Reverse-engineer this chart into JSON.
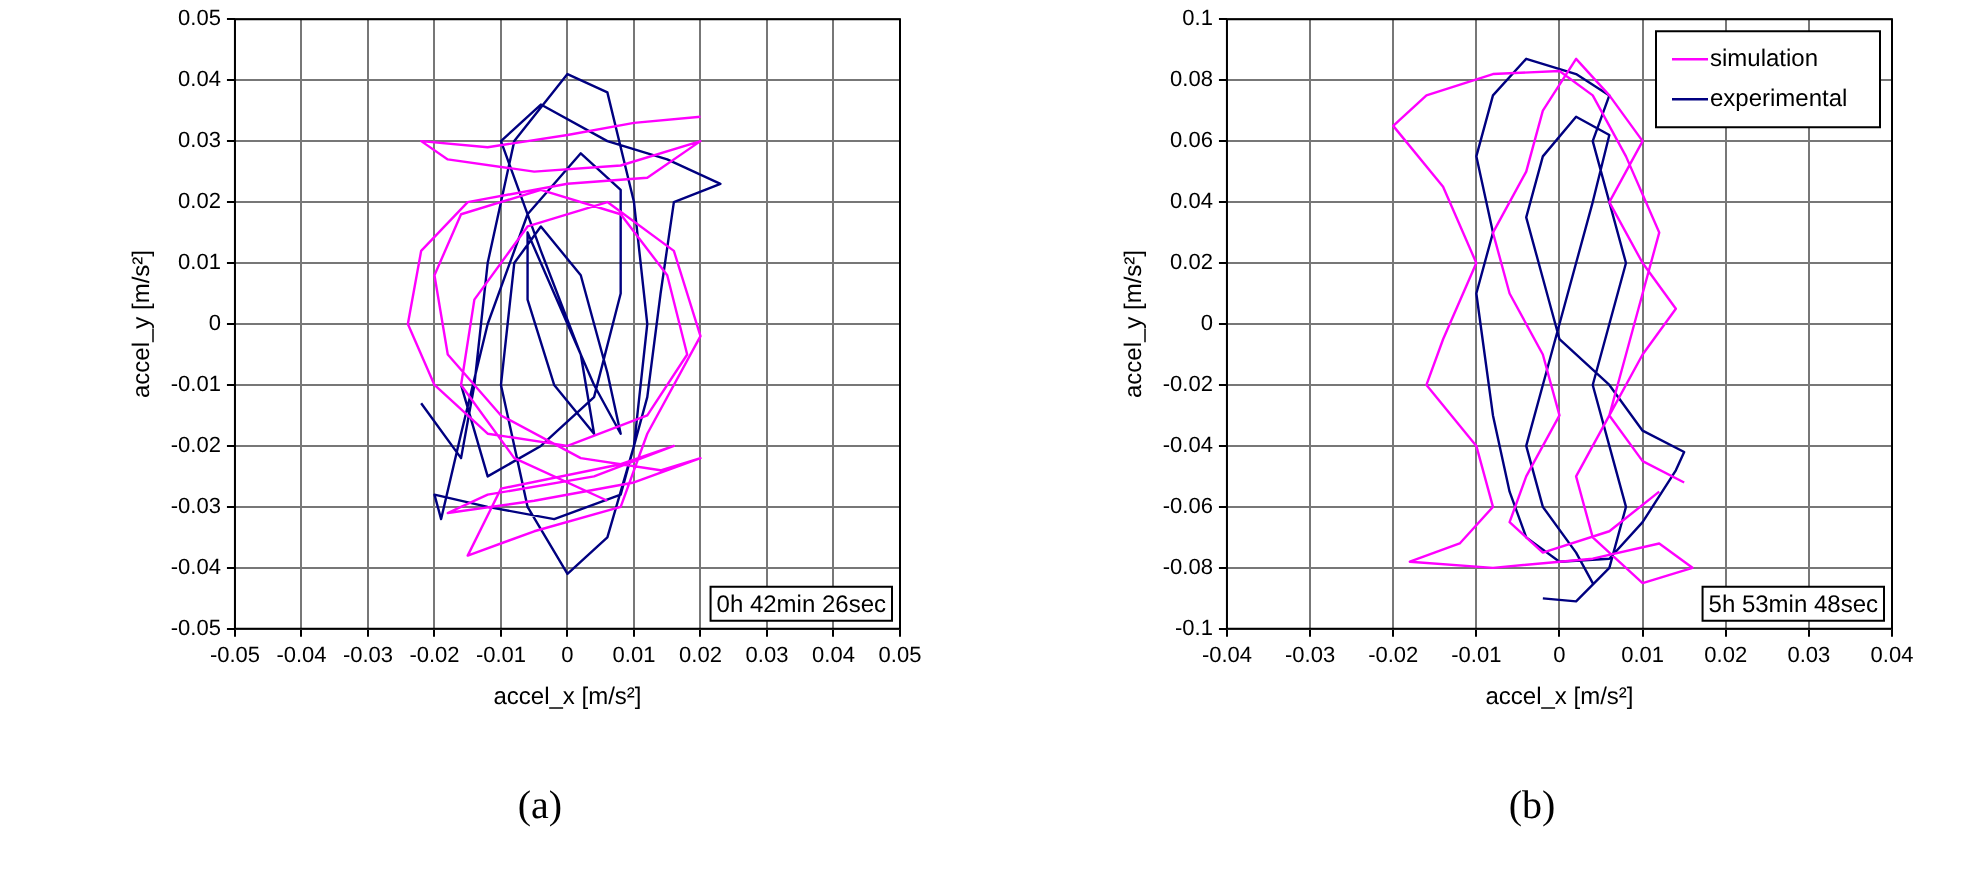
{
  "chart_data": [
    {
      "type": "line",
      "xlabel": "accel_x [m/s²]",
      "ylabel": "accel_y [m/s²]",
      "xlim": [
        -0.05,
        0.05
      ],
      "ylim": [
        -0.05,
        0.05
      ],
      "xticks": [
        -0.05,
        -0.04,
        -0.03,
        -0.02,
        -0.01,
        0,
        0.01,
        0.02,
        0.03,
        0.04,
        0.05
      ],
      "yticks": [
        -0.05,
        -0.04,
        -0.03,
        -0.02,
        -0.01,
        0,
        0.01,
        0.02,
        0.03,
        0.04,
        0.05
      ],
      "grid": true,
      "marker": "none",
      "line_style": "solid",
      "annotations": [
        "0h 42min 26sec",
        "(a)"
      ],
      "series": [
        {
          "color": "#ff00ff",
          "x": [
            0.02,
            0.01,
            0.0,
            -0.012,
            -0.022,
            -0.018,
            -0.005,
            0.008,
            0.02,
            0.012,
            0.0,
            -0.015,
            -0.022,
            -0.024,
            -0.02,
            -0.012,
            0.0,
            0.012,
            0.018,
            0.015,
            0.008,
            -0.004,
            -0.016,
            -0.02,
            -0.018,
            -0.01,
            0.002,
            0.014,
            0.02,
            0.01,
            -0.005,
            -0.018,
            -0.012,
            0.004,
            0.016,
            0.008,
            -0.01,
            -0.015,
            -0.005,
            0.008,
            0.012,
            0.02,
            0.016,
            0.006,
            -0.006,
            -0.014,
            -0.016,
            -0.008,
            0.006
          ],
          "values": [
            0.034,
            0.033,
            0.031,
            0.029,
            0.03,
            0.027,
            0.025,
            0.026,
            0.03,
            0.024,
            0.023,
            0.02,
            0.012,
            0.0,
            -0.01,
            -0.018,
            -0.02,
            -0.015,
            -0.005,
            0.008,
            0.018,
            0.022,
            0.018,
            0.008,
            -0.005,
            -0.015,
            -0.022,
            -0.024,
            -0.022,
            -0.026,
            -0.029,
            -0.031,
            -0.028,
            -0.025,
            -0.02,
            -0.023,
            -0.027,
            -0.038,
            -0.034,
            -0.03,
            -0.018,
            -0.002,
            0.012,
            0.02,
            0.016,
            0.004,
            -0.01,
            -0.022,
            -0.029
          ]
        },
        {
          "color": "#000080",
          "x": [
            -0.022,
            -0.016,
            -0.014,
            -0.012,
            -0.008,
            0.0,
            0.006,
            0.01,
            0.012,
            0.01,
            0.006,
            0.0,
            -0.006,
            -0.01,
            -0.008,
            -0.004,
            0.002,
            0.006,
            0.008,
            0.004,
            -0.002,
            -0.006,
            -0.006,
            -0.002,
            0.004,
            0.002,
            -0.004,
            -0.01,
            -0.004,
            0.006,
            0.015,
            0.023,
            0.016,
            0.014,
            0.012,
            0.008,
            -0.002,
            -0.012,
            -0.02,
            -0.019,
            -0.016,
            -0.012,
            -0.006,
            0.002,
            0.008,
            0.008,
            0.004,
            -0.004,
            -0.012,
            -0.016
          ],
          "values": [
            -0.013,
            -0.022,
            -0.01,
            0.01,
            0.03,
            0.041,
            0.038,
            0.02,
            0.0,
            -0.02,
            -0.035,
            -0.041,
            -0.03,
            -0.01,
            0.01,
            0.016,
            0.008,
            -0.008,
            -0.018,
            -0.01,
            0.005,
            0.015,
            0.004,
            -0.01,
            -0.018,
            -0.005,
            0.012,
            0.03,
            0.036,
            0.03,
            0.027,
            0.023,
            0.02,
            0.005,
            -0.012,
            -0.028,
            -0.032,
            -0.03,
            -0.028,
            -0.032,
            -0.018,
            0.0,
            0.018,
            0.028,
            0.022,
            0.005,
            -0.012,
            -0.02,
            -0.025,
            -0.01
          ]
        }
      ]
    },
    {
      "type": "line",
      "xlabel": "accel_x [m/s²]",
      "ylabel": "accel_y [m/s²]",
      "xlim": [
        -0.04,
        0.04
      ],
      "ylim": [
        -0.1,
        0.1
      ],
      "xticks": [
        -0.04,
        -0.03,
        -0.02,
        -0.01,
        0,
        0.01,
        0.02,
        0.03,
        0.04
      ],
      "yticks": [
        -0.1,
        -0.08,
        -0.06,
        -0.04,
        -0.02,
        0,
        0.02,
        0.04,
        0.06,
        0.08,
        0.1
      ],
      "grid": true,
      "marker": "none",
      "line_style": "solid",
      "legend": "top right",
      "annotations": [
        "5h 53min 48sec",
        "(b)"
      ],
      "series": [
        {
          "name": "simulation",
          "color": "#ff00ff",
          "x": [
            0.015,
            0.01,
            0.006,
            0.008,
            0.01,
            0.012,
            0.008,
            0.004,
            0.0,
            -0.008,
            -0.016,
            -0.02,
            -0.014,
            -0.01,
            -0.014,
            -0.016,
            -0.01,
            -0.008,
            -0.012,
            -0.018,
            -0.008,
            0.004,
            0.012,
            0.016,
            0.01,
            0.004,
            0.002,
            0.006,
            0.01,
            0.014,
            0.01,
            0.006,
            0.01,
            0.006,
            0.002,
            -0.002,
            -0.004,
            -0.008,
            -0.006,
            -0.002,
            0.0,
            -0.004,
            -0.006,
            -0.002,
            0.006,
            0.012
          ],
          "values": [
            -0.052,
            -0.045,
            -0.03,
            -0.01,
            0.01,
            0.03,
            0.055,
            0.075,
            0.083,
            0.082,
            0.075,
            0.065,
            0.045,
            0.02,
            -0.005,
            -0.02,
            -0.04,
            -0.06,
            -0.072,
            -0.078,
            -0.08,
            -0.077,
            -0.072,
            -0.08,
            -0.085,
            -0.07,
            -0.05,
            -0.03,
            -0.01,
            0.005,
            0.02,
            0.04,
            0.06,
            0.075,
            0.087,
            0.07,
            0.05,
            0.03,
            0.01,
            -0.01,
            -0.03,
            -0.05,
            -0.065,
            -0.075,
            -0.068,
            -0.055
          ]
        },
        {
          "name": "experimental",
          "color": "#000080",
          "x": [
            -0.002,
            0.002,
            0.006,
            0.008,
            0.006,
            0.004,
            0.006,
            0.008,
            0.006,
            0.004,
            0.006,
            0.002,
            -0.004,
            -0.008,
            -0.01,
            -0.008,
            -0.01,
            -0.009,
            -0.008,
            -0.006,
            -0.004,
            0.0,
            0.006,
            0.01,
            0.014,
            0.015,
            0.01,
            0.006,
            0.0,
            -0.002,
            -0.004,
            -0.002,
            0.002,
            0.006,
            0.004,
            0.002,
            0.0,
            -0.002,
            -0.004,
            -0.002,
            0.002,
            0.004
          ],
          "values": [
            -0.09,
            -0.091,
            -0.08,
            -0.06,
            -0.04,
            -0.02,
            0.0,
            0.02,
            0.04,
            0.06,
            0.075,
            0.082,
            0.087,
            0.075,
            0.055,
            0.03,
            0.01,
            -0.01,
            -0.03,
            -0.055,
            -0.07,
            -0.078,
            -0.077,
            -0.065,
            -0.048,
            -0.042,
            -0.035,
            -0.02,
            -0.005,
            0.015,
            0.035,
            0.055,
            0.068,
            0.062,
            0.04,
            0.02,
            0.0,
            -0.02,
            -0.04,
            -0.06,
            -0.075,
            -0.085
          ]
        }
      ]
    }
  ]
}
